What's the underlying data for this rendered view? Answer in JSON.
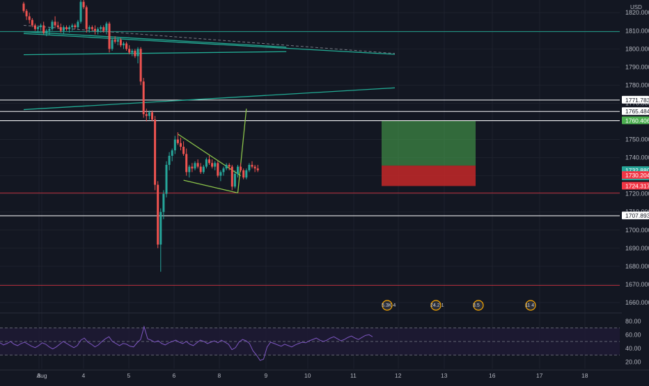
{
  "chart_data": {
    "type": "candlestick",
    "currency": "USD",
    "colors": {
      "background": "#131722",
      "bull": "#26a69a",
      "bear": "#ef5350",
      "grid": "#1e222d",
      "axis_text": "#b2b5be",
      "white_level": "#ffffff",
      "red_level": "#f23645",
      "teal_trend": "#22ab94",
      "green_pattern": "#8bc34a",
      "target_zone": "#4caf50",
      "stop_zone": "#c62828",
      "rsi_line": "#7e57c2",
      "rsi_band": "#1e1933"
    },
    "x_axis": {
      "labels": [
        "Aug",
        "3",
        "4",
        "5",
        "6",
        "8",
        "9",
        "10",
        "11",
        "12",
        "13",
        "16",
        "17",
        "18"
      ]
    },
    "y_axis": {
      "range": [
        1655,
        1827
      ],
      "ticks": [
        1820,
        1810,
        1800,
        1790,
        1780,
        1770,
        1760,
        1750,
        1740,
        1730,
        1720,
        1710,
        1700,
        1690,
        1680,
        1670,
        1660
      ],
      "tick_labels": [
        "1820.000",
        "1810.000",
        "1800.000",
        "1790.000",
        "1780.000",
        "1770.000",
        "1760.000",
        "1750.000",
        "1740.000",
        "1730.000",
        "1720.000",
        "1710.000",
        "1700.000",
        "1690.000",
        "1680.000",
        "1670.000",
        "1660.000"
      ]
    },
    "price_tags": [
      {
        "label": "1771.783",
        "value": 1771.783,
        "style": "white"
      },
      {
        "label": "1765.484",
        "value": 1765.484,
        "style": "white"
      },
      {
        "label": "1760.406",
        "value": 1760.406,
        "style": "green"
      },
      {
        "label": "1732.880",
        "sublabel": "03:17",
        "value": 1732.88,
        "style": "teal"
      },
      {
        "label": "1730.204",
        "value": 1730.204,
        "style": "red"
      },
      {
        "label": "1724.317",
        "value": 1724.317,
        "style": "red"
      },
      {
        "label": "1707.893",
        "value": 1707.893,
        "style": "white"
      }
    ],
    "horizontal_levels": [
      {
        "value": 1771.783,
        "color": "white"
      },
      {
        "value": 1765.484,
        "color": "white"
      },
      {
        "value": 1760.406,
        "color": "white"
      },
      {
        "value": 1720.5,
        "color": "red"
      },
      {
        "value": 1707.893,
        "color": "white"
      },
      {
        "value": 1669.5,
        "color": "red"
      },
      {
        "value": 1809.5,
        "color": "teal"
      }
    ],
    "candles": [
      [
        1825,
        1826,
        1820,
        1821
      ],
      [
        1821,
        1822,
        1816,
        1818
      ],
      [
        1818,
        1820,
        1814,
        1816
      ],
      [
        1816,
        1817,
        1812,
        1813
      ],
      [
        1813,
        1814,
        1810,
        1811
      ],
      [
        1811,
        1813,
        1809,
        1812
      ],
      [
        1812,
        1814,
        1810,
        1813
      ],
      [
        1813,
        1815,
        1808,
        1809
      ],
      [
        1809,
        1811,
        1807,
        1810
      ],
      [
        1810,
        1812,
        1808,
        1811
      ],
      [
        1811,
        1816,
        1810,
        1815
      ],
      [
        1815,
        1818,
        1812,
        1813
      ],
      [
        1813,
        1815,
        1811,
        1812
      ],
      [
        1812,
        1814,
        1809,
        1810
      ],
      [
        1810,
        1813,
        1808,
        1812
      ],
      [
        1812,
        1813,
        1810,
        1811
      ],
      [
        1811,
        1813,
        1809,
        1812
      ],
      [
        1812,
        1814,
        1810,
        1813
      ],
      [
        1813,
        1814,
        1811,
        1812
      ],
      [
        1812,
        1816,
        1811,
        1815
      ],
      [
        1815,
        1827,
        1814,
        1826
      ],
      [
        1826,
        1827,
        1822,
        1823
      ],
      [
        1823,
        1824,
        1809,
        1811
      ],
      [
        1811,
        1813,
        1809,
        1812
      ],
      [
        1812,
        1813,
        1810,
        1811
      ],
      [
        1811,
        1813,
        1808,
        1810
      ],
      [
        1810,
        1812,
        1808,
        1811
      ],
      [
        1811,
        1813,
        1809,
        1812
      ],
      [
        1812,
        1813,
        1809,
        1810
      ],
      [
        1810,
        1815,
        1808,
        1814
      ],
      [
        1814,
        1815,
        1798,
        1800
      ],
      [
        1800,
        1806,
        1799,
        1805
      ],
      [
        1805,
        1807,
        1803,
        1804
      ],
      [
        1804,
        1806,
        1802,
        1805
      ],
      [
        1805,
        1806,
        1801,
        1802
      ],
      [
        1802,
        1804,
        1800,
        1803
      ],
      [
        1803,
        1804,
        1799,
        1800
      ],
      [
        1800,
        1802,
        1797,
        1798
      ],
      [
        1798,
        1800,
        1796,
        1799
      ],
      [
        1799,
        1800,
        1795,
        1796
      ],
      [
        1796,
        1801,
        1792,
        1800
      ],
      [
        1800,
        1801,
        1780,
        1782
      ],
      [
        1782,
        1784,
        1762,
        1764
      ],
      [
        1764,
        1767,
        1760,
        1763
      ],
      [
        1763,
        1766,
        1761,
        1765
      ],
      [
        1765,
        1766,
        1760,
        1761
      ],
      [
        1761,
        1763,
        1722,
        1725
      ],
      [
        1725,
        1727,
        1690,
        1692
      ],
      [
        1692,
        1712,
        1677,
        1710
      ],
      [
        1710,
        1722,
        1706,
        1720
      ],
      [
        1720,
        1738,
        1718,
        1736
      ],
      [
        1736,
        1743,
        1733,
        1741
      ],
      [
        1741,
        1745,
        1738,
        1744
      ],
      [
        1744,
        1752,
        1742,
        1750
      ],
      [
        1750,
        1754,
        1747,
        1748
      ],
      [
        1748,
        1751,
        1744,
        1746
      ],
      [
        1746,
        1749,
        1741,
        1742
      ],
      [
        1742,
        1745,
        1730,
        1732
      ],
      [
        1732,
        1736,
        1729,
        1735
      ],
      [
        1735,
        1737,
        1732,
        1734
      ],
      [
        1734,
        1738,
        1733,
        1737
      ],
      [
        1737,
        1739,
        1734,
        1735
      ],
      [
        1735,
        1737,
        1731,
        1732
      ],
      [
        1732,
        1736,
        1731,
        1735
      ],
      [
        1735,
        1740,
        1734,
        1739
      ],
      [
        1739,
        1741,
        1736,
        1737
      ],
      [
        1737,
        1739,
        1734,
        1735
      ],
      [
        1735,
        1738,
        1733,
        1737
      ],
      [
        1737,
        1738,
        1729,
        1730
      ],
      [
        1730,
        1733,
        1727,
        1732
      ],
      [
        1732,
        1735,
        1730,
        1734
      ],
      [
        1734,
        1737,
        1733,
        1736
      ],
      [
        1736,
        1737,
        1733,
        1735
      ],
      [
        1735,
        1736,
        1722,
        1724
      ],
      [
        1724,
        1733,
        1723,
        1731
      ],
      [
        1731,
        1736,
        1729,
        1735
      ],
      [
        1735,
        1737,
        1732,
        1733
      ],
      [
        1733,
        1734,
        1728,
        1729
      ],
      [
        1729,
        1734,
        1728,
        1733
      ],
      [
        1733,
        1737,
        1732,
        1736
      ],
      [
        1736,
        1738,
        1734,
        1735
      ],
      [
        1735,
        1736,
        1732,
        1734
      ],
      [
        1734,
        1736,
        1732,
        1733
      ]
    ],
    "trendlines": [
      {
        "kind": "teal",
        "from": [
          0,
          1809.5
        ],
        "to": [
          92,
          1801
        ]
      },
      {
        "kind": "teal",
        "from": [
          0,
          1796.8
        ],
        "to": [
          92,
          1798.5
        ]
      },
      {
        "kind": "teal",
        "from": [
          0,
          1766.5
        ],
        "to": [
          130,
          1778.5
        ]
      },
      {
        "kind": "dashed",
        "from": [
          0,
          1813
        ],
        "to": [
          130,
          1797.5
        ]
      },
      {
        "kind": "teal",
        "from": [
          0,
          1808.5
        ],
        "to": [
          130,
          1797
        ]
      },
      {
        "kind": "green",
        "from": [
          54,
          1753
        ],
        "to": [
          76,
          1730
        ]
      },
      {
        "kind": "green",
        "from": [
          56,
          1727.5
        ],
        "to": [
          75,
          1720.5
        ]
      },
      {
        "kind": "green",
        "from": [
          75,
          1720.5
        ],
        "to": [
          78,
          1767
        ]
      }
    ],
    "position": {
      "entry": 1730.204,
      "target": 1760.406,
      "stop": 1724.317
    },
    "rsi": {
      "levels": [
        70,
        50,
        30
      ],
      "ticks": [
        80,
        60,
        40,
        20
      ],
      "tick_labels": [
        "80.00",
        "60.00",
        "40.00",
        "20.00"
      ],
      "range": [
        10,
        90
      ],
      "values": [
        48,
        45,
        47,
        50,
        46,
        44,
        47,
        49,
        46,
        43,
        41,
        44,
        48,
        46,
        42,
        39,
        42,
        46,
        50,
        47,
        44,
        41,
        44,
        52,
        55,
        49,
        46,
        42,
        45,
        50,
        54,
        57,
        50,
        47,
        44,
        47,
        46,
        43,
        42,
        48,
        53,
        72,
        54,
        52,
        49,
        51,
        47,
        45,
        48,
        50,
        52,
        49,
        47,
        50,
        46,
        44,
        48,
        52,
        50,
        47,
        49,
        51,
        48,
        52,
        49,
        46,
        38,
        41,
        49,
        53,
        51,
        47,
        36,
        30,
        22,
        24,
        42,
        49,
        47,
        45,
        43,
        46,
        44,
        42,
        45,
        47,
        49,
        48,
        51,
        53,
        55,
        52,
        50,
        52,
        55,
        57,
        54,
        51,
        53,
        56,
        58,
        55,
        53,
        56,
        59,
        60,
        57
      ]
    },
    "events": [
      {
        "label": "5.3K 4"
      },
      {
        "label": "24.2 1"
      },
      {
        "label": "3.5"
      },
      {
        "label": "11 4"
      }
    ]
  }
}
